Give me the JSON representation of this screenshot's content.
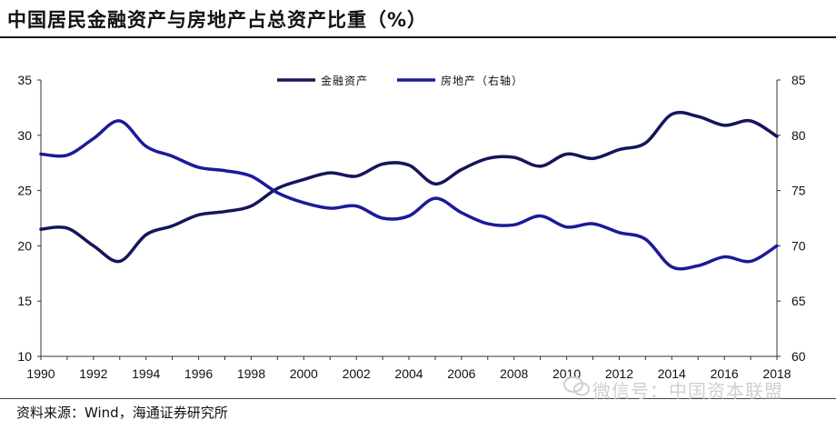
{
  "title": "中国居民金融资产与房地产占总资产比重（%）",
  "source": "资料来源：Wind，海通证券研究所",
  "watermark": "微信号：中国资本联盟",
  "chart_data": {
    "type": "line",
    "title": "中国居民金融资产与房地产占总资产比重（%）",
    "xlabel": "",
    "ylabel": "",
    "x": [
      1990,
      1991,
      1992,
      1993,
      1994,
      1995,
      1996,
      1997,
      1998,
      1999,
      2000,
      2001,
      2002,
      2003,
      2004,
      2005,
      2006,
      2007,
      2008,
      2009,
      2010,
      2011,
      2012,
      2013,
      2014,
      2015,
      2016,
      2017,
      2018
    ],
    "x_ticks": [
      "1990",
      "1992",
      "1994",
      "1996",
      "1998",
      "2000",
      "2002",
      "2004",
      "2006",
      "2008",
      "2010",
      "2012",
      "2014",
      "2016",
      "2018"
    ],
    "ylim_left": [
      10,
      35
    ],
    "yticks_left": [
      "10",
      "15",
      "20",
      "25",
      "30",
      "35"
    ],
    "ylim_right": [
      60,
      85
    ],
    "yticks_right": [
      "60",
      "65",
      "70",
      "75",
      "80",
      "85"
    ],
    "legend_position": "top-center",
    "grid": false,
    "series": [
      {
        "name": "金融资产",
        "axis": "left",
        "color": "#15155c",
        "values": [
          21.5,
          21.6,
          20.0,
          18.6,
          21.0,
          21.8,
          22.8,
          23.1,
          23.6,
          25.2,
          26.0,
          26.6,
          26.3,
          27.4,
          27.3,
          25.6,
          26.9,
          27.9,
          28.0,
          27.2,
          28.3,
          27.9,
          28.7,
          29.3,
          31.9,
          31.7,
          30.9,
          31.3,
          29.9
        ]
      },
      {
        "name": "房地产（右轴）",
        "axis": "right",
        "color": "#1a1a99",
        "values": [
          78.3,
          78.2,
          79.7,
          81.3,
          79.0,
          78.1,
          77.1,
          76.8,
          76.3,
          74.8,
          73.9,
          73.4,
          73.6,
          72.5,
          72.7,
          74.3,
          73.0,
          72.0,
          71.9,
          72.7,
          71.7,
          72.0,
          71.2,
          70.6,
          68.1,
          68.2,
          69.0,
          68.6,
          70.0
        ]
      }
    ]
  }
}
